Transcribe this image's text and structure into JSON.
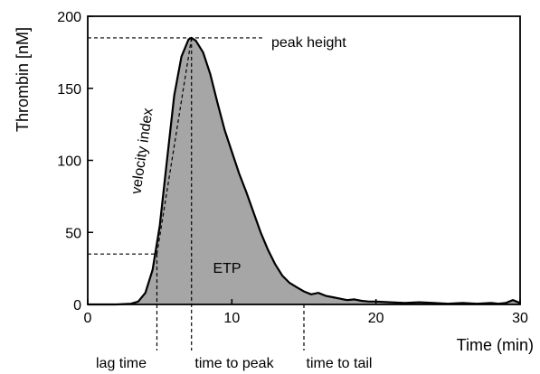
{
  "chart_data": {
    "type": "area",
    "xlabel": "Time (min)",
    "ylabel": "Thrombin [nM]",
    "xlim": [
      0,
      30
    ],
    "ylim": [
      0,
      200
    ],
    "xticks": [
      0,
      10,
      20,
      30
    ],
    "yticks": [
      0,
      50,
      100,
      150,
      200
    ],
    "grid": false,
    "fill_color": "#a6a6a6",
    "line_color": "#000000",
    "x": [
      0,
      1,
      2,
      3,
      3.5,
      4,
      4.5,
      5,
      5.5,
      6,
      6.5,
      7,
      7.2,
      7.5,
      8,
      8.5,
      9,
      9.5,
      10,
      10.5,
      11,
      11.5,
      12,
      12.5,
      13,
      13.5,
      14,
      14.5,
      15,
      15.5,
      16,
      16.5,
      17,
      17.5,
      18,
      18.5,
      19,
      19.5,
      20,
      21,
      22,
      23,
      24,
      25,
      26,
      27,
      28,
      28.5,
      29,
      29.5,
      30
    ],
    "y": [
      0,
      0,
      0,
      0.5,
      2,
      8,
      24,
      55,
      100,
      145,
      172,
      184,
      185,
      183,
      175,
      160,
      140,
      121,
      106,
      91,
      78,
      64,
      50,
      38,
      28,
      20,
      15,
      12,
      9,
      7,
      8,
      6,
      5,
      4,
      3,
      3.5,
      2.5,
      2,
      2,
      1.5,
      1,
      1.5,
      1,
      0.5,
      1,
      0.5,
      1,
      0.5,
      1,
      3,
      1
    ],
    "annotations": {
      "peak_height": {
        "label": "peak height",
        "x": 7.2,
        "y": 185
      },
      "velocity_index": {
        "label": "velocity index",
        "x1": 4.8,
        "y1": 35,
        "x2": 7.2,
        "y2": 185
      },
      "lag_time": {
        "label": "lag time",
        "x": 4.8,
        "y": 35
      },
      "time_to_peak": {
        "label": "time to peak",
        "x": 7.2
      },
      "time_to_tail": {
        "label": "time to tail",
        "x": 15
      },
      "etp": {
        "label": "ETP",
        "x": 9.7,
        "y": 46
      }
    }
  }
}
